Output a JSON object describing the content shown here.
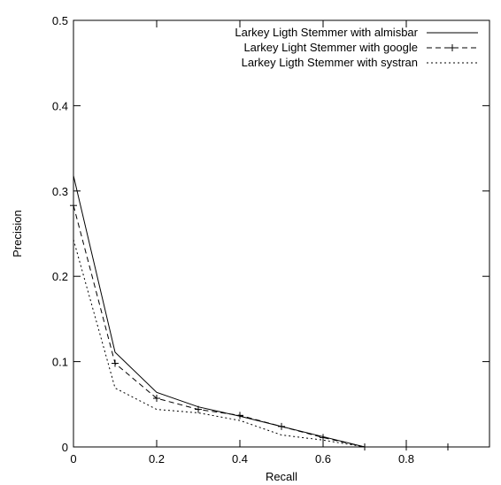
{
  "chart_data": {
    "type": "line",
    "xlabel": "Recall",
    "ylabel": "Precision",
    "xlim": [
      0,
      1.0
    ],
    "ylim": [
      0,
      0.5
    ],
    "xticks": [
      "0",
      "0.2",
      "0.4",
      "0.6",
      "0.8"
    ],
    "xtick_values": [
      0,
      0.2,
      0.4,
      0.6,
      0.8
    ],
    "yticks": [
      "0",
      "0.1",
      "0.2",
      "0.3",
      "0.4",
      "0.5"
    ],
    "ytick_values": [
      0,
      0.1,
      0.2,
      0.3,
      0.4,
      0.5
    ],
    "grid": false,
    "legend_position": "top-right",
    "x": [
      0,
      0.1,
      0.2,
      0.3,
      0.4,
      0.5,
      0.6,
      0.7,
      0.8,
      0.9
    ],
    "series": [
      {
        "name": "Larkey Ligth Stemmer with almisbar",
        "style": "solid",
        "marker": "none",
        "values": [
          0.318,
          0.111,
          0.064,
          0.047,
          0.036,
          0.024,
          0.012,
          0.0,
          0.0,
          0.0
        ]
      },
      {
        "name": "Larkey Light Stemmer with google",
        "style": "dashed",
        "marker": "plus",
        "values": [
          0.283,
          0.098,
          0.057,
          0.044,
          0.037,
          0.024,
          0.011,
          0.0,
          0.0,
          0.0
        ]
      },
      {
        "name": "Larkey Ligth Stemmer with systran",
        "style": "dotted",
        "marker": "none",
        "values": [
          0.243,
          0.069,
          0.044,
          0.04,
          0.031,
          0.014,
          0.008,
          0.0,
          0.0,
          0.0
        ]
      }
    ]
  }
}
